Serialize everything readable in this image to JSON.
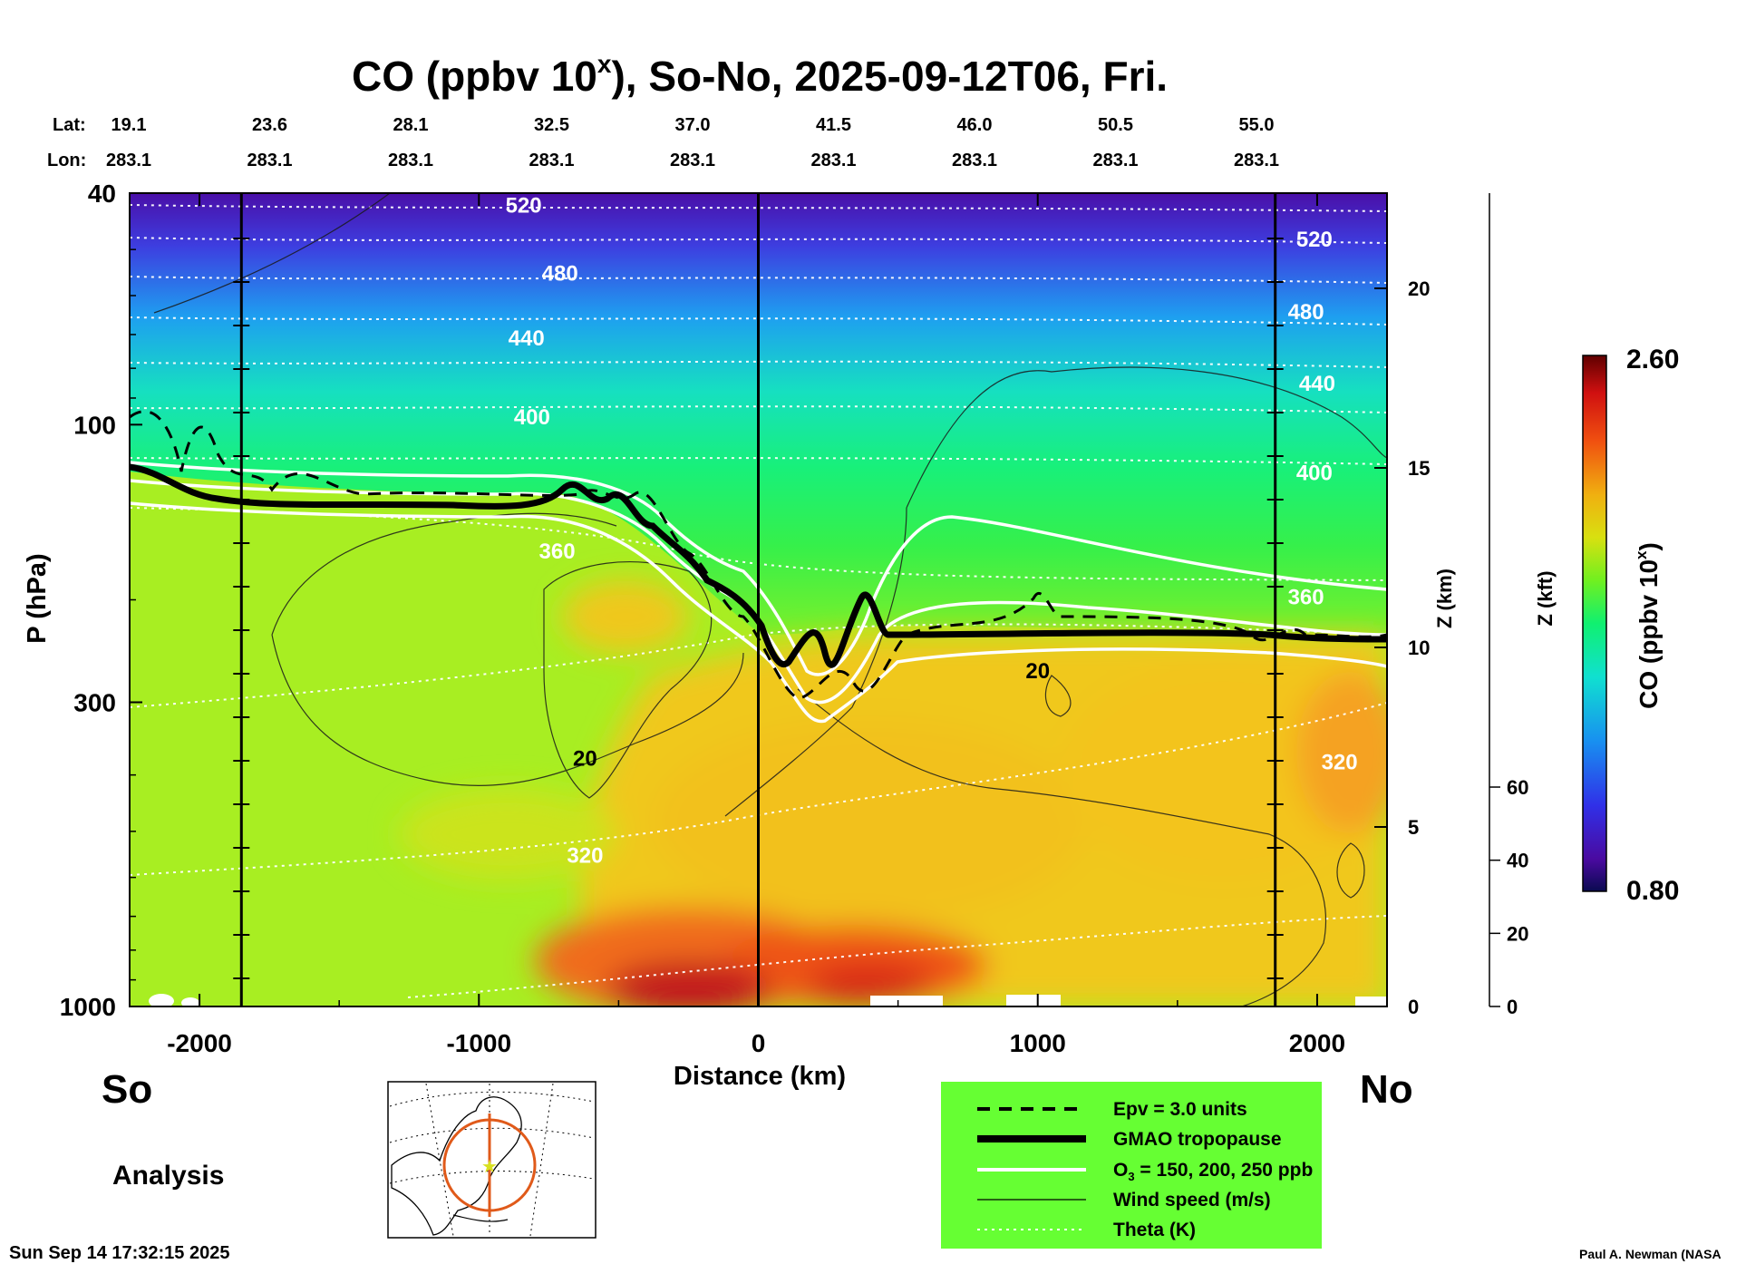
{
  "chart_data": {
    "type": "heatmap",
    "title_prefix": "CO (ppbv 10",
    "title_sup": "x",
    "title_suffix": "), So-No, 2025-09-12T06, Fri.",
    "xlabel": "Distance (km)",
    "ylabel": "P (hPa)",
    "z_km_label": "Z (km)",
    "z_kft_label": "Z (kft)",
    "colorbar_label": "CO (ppbv 10x)",
    "colorbar_range": [
      0.8,
      2.6
    ],
    "colorbar_min_label": "0.80",
    "colorbar_max_label": "2.60",
    "xlim": [
      -2250,
      2250
    ],
    "ylim_hpa": [
      1000,
      40
    ],
    "x_ticks": [
      {
        "value": -2000,
        "label": "-2000"
      },
      {
        "value": -1000,
        "label": "-1000"
      },
      {
        "value": 0,
        "label": "0"
      },
      {
        "value": 1000,
        "label": "1000"
      },
      {
        "value": 2000,
        "label": "2000"
      }
    ],
    "y_ticks": [
      {
        "value": 40,
        "label": "40"
      },
      {
        "value": 100,
        "label": "100"
      },
      {
        "value": 300,
        "label": "300"
      },
      {
        "value": 1000,
        "label": "1000"
      }
    ],
    "z_km_ticks": [
      {
        "value": 0,
        "label": "0"
      },
      {
        "value": 5,
        "label": "5"
      },
      {
        "value": 10,
        "label": "10"
      },
      {
        "value": 15,
        "label": "15"
      },
      {
        "value": 20,
        "label": "20"
      }
    ],
    "z_kft_ticks": [
      {
        "value": 0,
        "label": "0"
      },
      {
        "value": 20,
        "label": "20"
      },
      {
        "value": 40,
        "label": "40"
      },
      {
        "value": 60,
        "label": "60"
      }
    ],
    "lat_header": "Lat:",
    "lon_header": "Lon:",
    "lat_lon": [
      {
        "lat": "19.1",
        "lon": "283.1"
      },
      {
        "lat": "23.6",
        "lon": "283.1"
      },
      {
        "lat": "28.1",
        "lon": "283.1"
      },
      {
        "lat": "32.5",
        "lon": "283.1"
      },
      {
        "lat": "37.0",
        "lon": "283.1"
      },
      {
        "lat": "41.5",
        "lon": "283.1"
      },
      {
        "lat": "46.0",
        "lon": "283.1"
      },
      {
        "lat": "50.5",
        "lon": "283.1"
      },
      {
        "lat": "55.0",
        "lon": "283.1"
      }
    ],
    "theta_labels": [
      {
        "text": "520",
        "x": -840,
        "p": 42
      },
      {
        "text": "480",
        "x": -710,
        "p": 55
      },
      {
        "text": "440",
        "x": -830,
        "p": 71
      },
      {
        "text": "400",
        "x": -810,
        "p": 97
      },
      {
        "text": "360",
        "x": -720,
        "p": 165
      },
      {
        "text": "320",
        "x": -620,
        "p": 550
      },
      {
        "text": "520",
        "x": 1990,
        "p": 48
      },
      {
        "text": "480",
        "x": 1960,
        "p": 64
      },
      {
        "text": "440",
        "x": 2000,
        "p": 85
      },
      {
        "text": "400",
        "x": 1990,
        "p": 121
      },
      {
        "text": "360",
        "x": 1960,
        "p": 198
      },
      {
        "text": "320",
        "x": 2080,
        "p": 380
      }
    ],
    "wind_labels": [
      {
        "text": "20",
        "x": -620,
        "p": 375
      },
      {
        "text": "20",
        "x": 1000,
        "p": 265
      }
    ],
    "vertical_markers_km": [
      -1850,
      0,
      1850
    ],
    "legend": [
      {
        "label": "Epv = 3.0 units",
        "style": "dashed-black"
      },
      {
        "label": "GMAO tropopause",
        "style": "thick-black"
      },
      {
        "label": "O3 = 150, 200, 250 ppb",
        "style": "white"
      },
      {
        "label": "Wind speed (m/s)",
        "style": "thin-black"
      },
      {
        "label": "Theta (K)",
        "style": "dotted-white"
      }
    ]
  },
  "labels": {
    "south": "So",
    "north": "No",
    "analysis": "Analysis",
    "timestamp": "Sun Sep 14 17:32:15 2025",
    "credit": "Paul A. Newman (NASA",
    "legend_o3_prefix": "O",
    "legend_o3_sub": "3",
    "legend_o3_suffix": " = 150, 200, 250 ppb",
    "colorbar_label_prefix": "CO (ppbv 10",
    "colorbar_label_sup": "x",
    "colorbar_label_suffix": ")"
  },
  "colors": {
    "legend_bg": "#66ff33",
    "map_circle": "#e05a1a"
  }
}
